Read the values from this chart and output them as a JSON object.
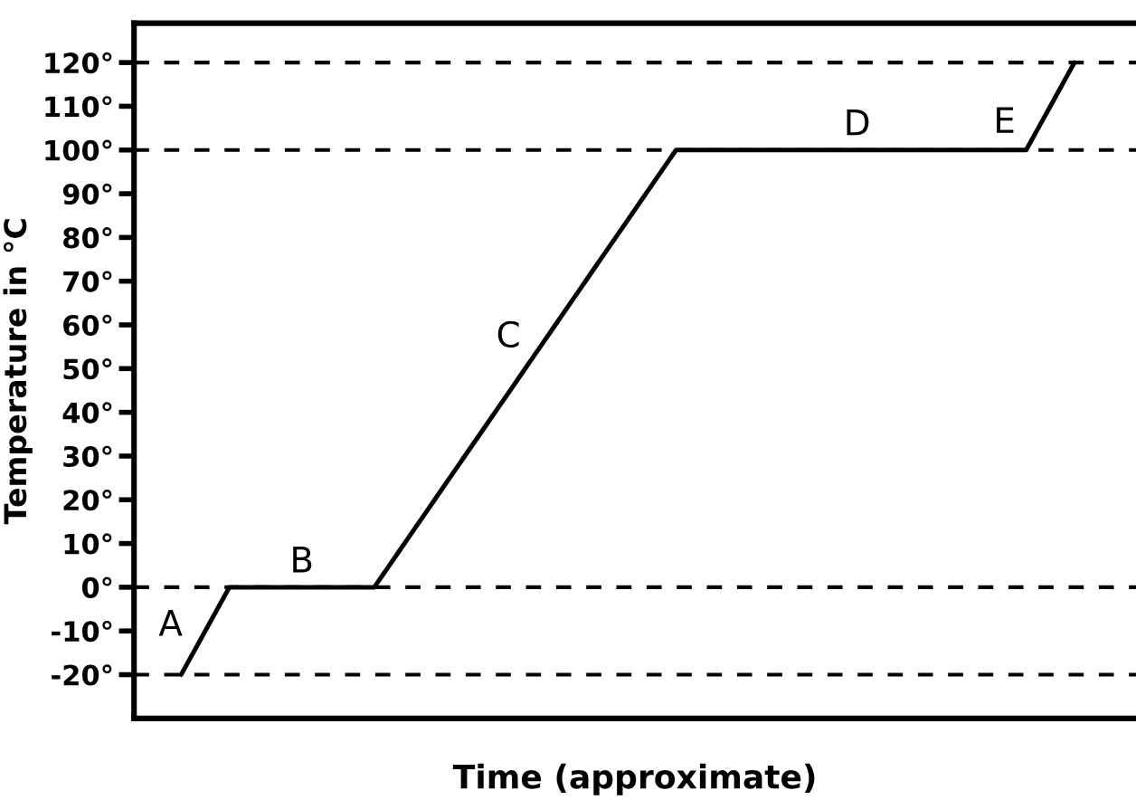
{
  "chart_data": {
    "type": "line",
    "xlabel": "Time (approximate)",
    "ylabel": "Temperature in °C",
    "categories": [
      null,
      null,
      null,
      null,
      null,
      null,
      null,
      null,
      null,
      null,
      null,
      null,
      null,
      null,
      null,
      null,
      null,
      null,
      null,
      null,
      null,
      null,
      null,
      null,
      null,
      null,
      null,
      null,
      null,
      null,
      null,
      null,
      null,
      null,
      null,
      null,
      null,
      null,
      null,
      null,
      null,
      null,
      null,
      null,
      null,
      null,
      null,
      null,
      null,
      null,
      null,
      null,
      null,
      null,
      null,
      null,
      null,
      null,
      null,
      null,
      null,
      null,
      null,
      null,
      null,
      null,
      null,
      null,
      null,
      null,
      null,
      null,
      null,
      null,
      null
    ],
    "series": [
      {
        "color": "#000000",
        "values": [
          -20,
          -15,
          -10,
          -5,
          0,
          0,
          0,
          0,
          0,
          0,
          0,
          0,
          0,
          0,
          0,
          0,
          0,
          4,
          8,
          12,
          16,
          20,
          24,
          28,
          32,
          36,
          40,
          44,
          48,
          52,
          56,
          60,
          64,
          68,
          72,
          76,
          80,
          84,
          88,
          92,
          96,
          100,
          100,
          100,
          100,
          100,
          100,
          100,
          100,
          100,
          100,
          100,
          100,
          100,
          100,
          100,
          100,
          100,
          100,
          100,
          100,
          100,
          100,
          100,
          100,
          100,
          100,
          100,
          100,
          100,
          100,
          105,
          110,
          115,
          120
        ],
        "value_labels": [
          null,
          null,
          "A",
          null,
          null,
          null,
          null,
          null,
          null,
          null,
          "B",
          null,
          null,
          null,
          null,
          null,
          null,
          null,
          null,
          null,
          null,
          null,
          null,
          null,
          null,
          null,
          null,
          null,
          null,
          null,
          "C",
          null,
          null,
          null,
          null,
          null,
          null,
          null,
          null,
          null,
          null,
          null,
          null,
          null,
          null,
          null,
          null,
          null,
          null,
          null,
          null,
          null,
          null,
          null,
          null,
          null,
          "D",
          null,
          null,
          null,
          null,
          null,
          null,
          null,
          null,
          null,
          null,
          null,
          null,
          null,
          null,
          "E",
          null,
          null,
          null
        ]
      }
    ],
    "ylim": [
      -30,
      129
    ],
    "yticks": [
      {
        "value": -20,
        "label": "-20°"
      },
      {
        "value": -10,
        "label": "-10°"
      },
      {
        "value": 0,
        "label": "0°"
      },
      {
        "value": 10,
        "label": "10°"
      },
      {
        "value": 20,
        "label": "20°"
      },
      {
        "value": 30,
        "label": "30°"
      },
      {
        "value": 40,
        "label": "40°"
      },
      {
        "value": 50,
        "label": "50°"
      },
      {
        "value": 60,
        "label": "60°"
      },
      {
        "value": 70,
        "label": "70°"
      },
      {
        "value": 80,
        "label": "80°"
      },
      {
        "value": 90,
        "label": "90°"
      },
      {
        "value": 100,
        "label": "100°"
      },
      {
        "value": 110,
        "label": "110°"
      },
      {
        "value": 120,
        "label": "120°"
      }
    ],
    "tick_labels": "y",
    "marker": "none",
    "line_style": "solid",
    "ref_lines": [
      {
        "axis": "y",
        "value": -20,
        "color": "#000000",
        "line_style": "dashed"
      },
      {
        "axis": "y",
        "value": 0,
        "color": "#000000",
        "line_style": "dashed"
      },
      {
        "axis": "y",
        "value": 100,
        "color": "#000000",
        "line_style": "dashed"
      },
      {
        "axis": "y",
        "value": 120,
        "color": "#000000",
        "line_style": "dashed"
      }
    ]
  }
}
